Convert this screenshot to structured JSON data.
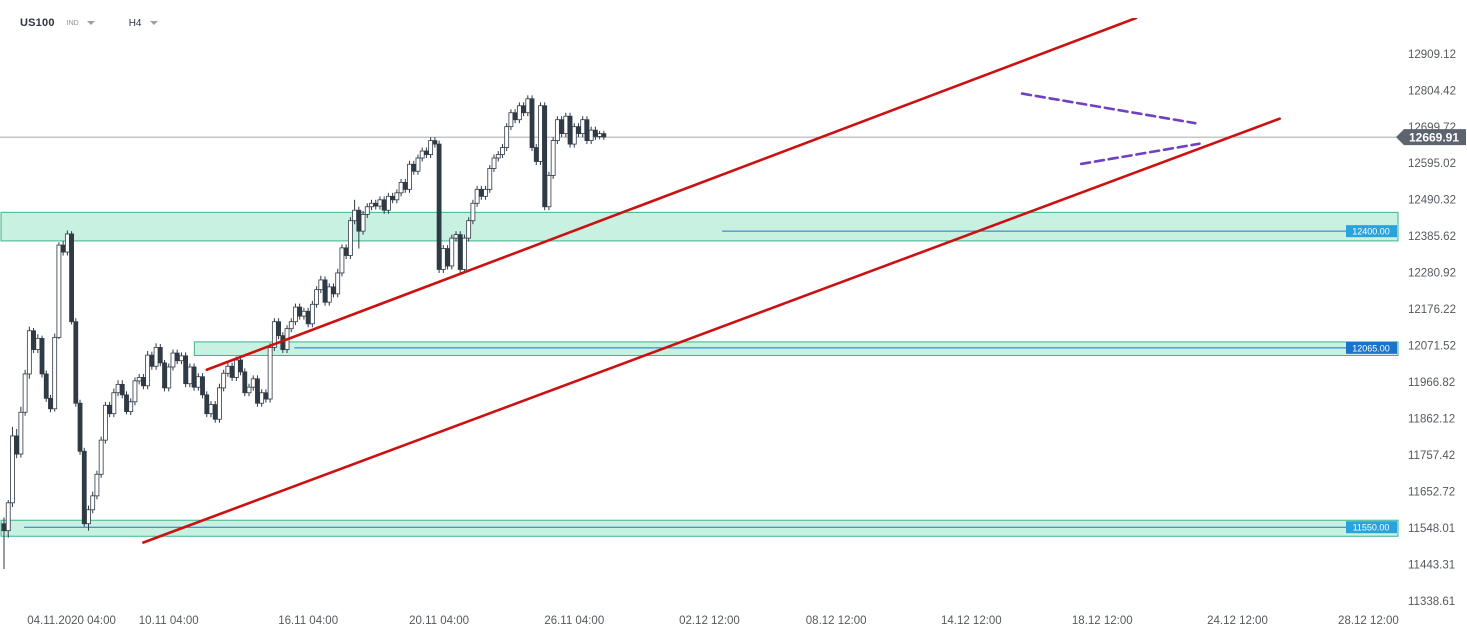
{
  "header": {
    "symbol": "US100",
    "symbol_type": "IND",
    "timeframe": "H4"
  },
  "colors": {
    "bull_candle": "#ffffff",
    "bear_candle": "#2f3a45",
    "wick": "#2f3a45",
    "channel": "#cc1111",
    "triangle": "#7040c0",
    "zone_fill": "#c9f1e2",
    "zone_stroke": "#3ab58a",
    "level_line": "#1a78c2",
    "level_badge_light": "#29a3dd",
    "level_badge_dark": "#1a74c9",
    "current_price_badge": "#5d6470",
    "axis_text": "#55595f"
  },
  "chart_data": {
    "type": "candlestick",
    "y_axis": {
      "ticks": [
        12909.12,
        12804.42,
        12699.72,
        12595.02,
        12490.32,
        12385.62,
        12280.92,
        12176.22,
        12071.52,
        11966.82,
        11862.12,
        11757.42,
        11652.72,
        11548.01,
        11443.31,
        11338.61
      ],
      "tick_labels": [
        "12909.12",
        "12804.42",
        "12699.72",
        "12595.02",
        "12490.32",
        "12385.62",
        "12280.92",
        "12176.22",
        "12071.52",
        "11966.82",
        "11862.12",
        "11757.42",
        "11652.72",
        "11548.01",
        "11443.31",
        "11338.61"
      ],
      "range": [
        11318,
        13012
      ]
    },
    "x_axis": {
      "range": [
        0,
        330
      ],
      "ticks": [
        {
          "x": 16,
          "label": "04.11.2020  04:00"
        },
        {
          "x": 39,
          "label": "10.11  04:00"
        },
        {
          "x": 72,
          "label": "16.11  04:00"
        },
        {
          "x": 103,
          "label": "20.11  04:00"
        },
        {
          "x": 135,
          "label": "26.11  04:00"
        },
        {
          "x": 167,
          "label": "02.12  12:00"
        },
        {
          "x": 197,
          "label": "08.12  12:00"
        },
        {
          "x": 229,
          "label": "14.12  12:00"
        },
        {
          "x": 260,
          "label": "18.12  12:00"
        },
        {
          "x": 292,
          "label": "24.12  12:00"
        },
        {
          "x": 323,
          "label": "28.12  12:00"
        }
      ]
    },
    "current_price": {
      "value": 12669.91,
      "label": "12669.91"
    },
    "levels": [
      {
        "value": 12400.0,
        "label": "12400.00",
        "x_start": 170,
        "zone": [
          12372,
          12454
        ]
      },
      {
        "value": 12065.0,
        "label": "12065.00",
        "x_start": 64,
        "zone": [
          12043,
          12082
        ]
      },
      {
        "value": 11550.0,
        "label": "11550.00",
        "x_start": 0,
        "zone": [
          11524,
          11570
        ]
      }
    ],
    "channel_lines": [
      {
        "x1": 48,
        "y1": 12002,
        "x2": 268,
        "y2": 13012
      },
      {
        "x1": 33,
        "y1": 11506,
        "x2": 302,
        "y2": 12723
      }
    ],
    "triangle_lines": [
      {
        "x1": 241,
        "y1": 12795,
        "x2": 282,
        "y2": 12710
      },
      {
        "x1": 255,
        "y1": 12593,
        "x2": 283,
        "y2": 12651
      }
    ],
    "candles": [
      [
        0,
        11560,
        11540,
        11578,
        11430
      ],
      [
        1,
        11540,
        11620,
        11628,
        11520
      ],
      [
        2,
        11620,
        11812,
        11838,
        11608
      ],
      [
        3,
        11812,
        11760,
        11832,
        11748
      ],
      [
        4,
        11760,
        11880,
        11896,
        11750
      ],
      [
        5,
        11880,
        11990,
        12002,
        11870
      ],
      [
        6,
        11990,
        12114,
        12126,
        11976
      ],
      [
        7,
        12114,
        12060,
        12122,
        12050
      ],
      [
        8,
        12060,
        12092,
        12104,
        12050
      ],
      [
        9,
        12092,
        11990,
        12100,
        11980
      ],
      [
        10,
        11990,
        11920,
        12000,
        11910
      ],
      [
        11,
        11920,
        11890,
        11930,
        11880
      ],
      [
        12,
        11890,
        12095,
        12106,
        11882
      ],
      [
        13,
        12095,
        12360,
        12368,
        12090
      ],
      [
        14,
        12360,
        12340,
        12372,
        12330
      ],
      [
        15,
        12340,
        12392,
        12402,
        12330
      ],
      [
        16,
        12392,
        12140,
        12400,
        12132
      ],
      [
        17,
        12140,
        11906,
        12150,
        11896
      ],
      [
        18,
        11906,
        11768,
        11916,
        11758
      ],
      [
        19,
        11768,
        11560,
        11778,
        11552
      ],
      [
        20,
        11560,
        11600,
        11612,
        11540
      ],
      [
        21,
        11600,
        11640,
        11652,
        11590
      ],
      [
        22,
        11640,
        11702,
        11712,
        11630
      ],
      [
        23,
        11702,
        11800,
        11810,
        11692
      ],
      [
        24,
        11800,
        11900,
        11910,
        11790
      ],
      [
        25,
        11900,
        11876,
        11910,
        11866
      ],
      [
        26,
        11876,
        11936,
        11948,
        11866
      ],
      [
        27,
        11936,
        11960,
        11972,
        11926
      ],
      [
        28,
        11960,
        11930,
        11972,
        11920
      ],
      [
        29,
        11930,
        11882,
        11940,
        11874
      ],
      [
        30,
        11882,
        11910,
        11920,
        11872
      ],
      [
        31,
        11910,
        11970,
        11980,
        11900
      ],
      [
        32,
        11970,
        11980,
        11990,
        11960
      ],
      [
        33,
        11980,
        11956,
        11990,
        11946
      ],
      [
        34,
        11956,
        12044,
        12056,
        11946
      ],
      [
        35,
        12044,
        12012,
        12054,
        12002
      ],
      [
        36,
        12012,
        12066,
        12078,
        12002
      ],
      [
        37,
        12066,
        12022,
        12076,
        12012
      ],
      [
        38,
        12022,
        11950,
        12030,
        11940
      ],
      [
        39,
        11950,
        12010,
        12020,
        11940
      ],
      [
        40,
        12010,
        12050,
        12060,
        12000
      ],
      [
        41,
        12050,
        12028,
        12060,
        12018
      ],
      [
        42,
        12028,
        12042,
        12052,
        12018
      ],
      [
        43,
        12042,
        11962,
        12052,
        11952
      ],
      [
        44,
        11962,
        12010,
        12020,
        11952
      ],
      [
        45,
        12010,
        11952,
        12020,
        11942
      ],
      [
        46,
        11952,
        11982,
        11992,
        11942
      ],
      [
        47,
        11982,
        11930,
        11992,
        11920
      ],
      [
        48,
        11930,
        11876,
        11940,
        11866
      ],
      [
        49,
        11876,
        11902,
        11912,
        11866
      ],
      [
        50,
        11902,
        11860,
        11912,
        11850
      ],
      [
        51,
        11860,
        11950,
        11962,
        11850
      ],
      [
        52,
        11950,
        11992,
        12002,
        11940
      ],
      [
        53,
        11992,
        12012,
        12022,
        11982
      ],
      [
        54,
        12012,
        11980,
        12022,
        11970
      ],
      [
        55,
        11980,
        12030,
        12040,
        11970
      ],
      [
        56,
        12030,
        11996,
        12040,
        11986
      ],
      [
        57,
        11996,
        11936,
        12006,
        11926
      ],
      [
        58,
        11936,
        11952,
        11962,
        11926
      ],
      [
        59,
        11952,
        11976,
        11986,
        11942
      ],
      [
        60,
        11976,
        11906,
        11986,
        11896
      ],
      [
        61,
        11906,
        11936,
        11946,
        11896
      ],
      [
        62,
        11936,
        11918,
        11946,
        11908
      ],
      [
        63,
        11918,
        12066,
        12078,
        11908
      ],
      [
        64,
        12066,
        12140,
        12150,
        12056
      ],
      [
        65,
        12140,
        12100,
        12150,
        12090
      ],
      [
        66,
        12100,
        12060,
        12110,
        12050
      ],
      [
        67,
        12060,
        12120,
        12130,
        12050
      ],
      [
        68,
        12120,
        12140,
        12150,
        12110
      ],
      [
        69,
        12140,
        12182,
        12192,
        12130
      ],
      [
        70,
        12182,
        12156,
        12192,
        12146
      ],
      [
        71,
        12156,
        12170,
        12180,
        12146
      ],
      [
        72,
        12170,
        12134,
        12180,
        12124
      ],
      [
        73,
        12134,
        12190,
        12200,
        12124
      ],
      [
        74,
        12190,
        12232,
        12242,
        12180
      ],
      [
        75,
        12232,
        12260,
        12272,
        12222
      ],
      [
        76,
        12260,
        12196,
        12270,
        12186
      ],
      [
        77,
        12196,
        12240,
        12250,
        12186
      ],
      [
        78,
        12240,
        12220,
        12250,
        12210
      ],
      [
        79,
        12220,
        12280,
        12292,
        12210
      ],
      [
        80,
        12280,
        12352,
        12362,
        12270
      ],
      [
        81,
        12352,
        12330,
        12362,
        12320
      ],
      [
        82,
        12330,
        12430,
        12440,
        12320
      ],
      [
        83,
        12430,
        12460,
        12490,
        12420
      ],
      [
        84,
        12460,
        12400,
        12470,
        12350
      ],
      [
        85,
        12400,
        12448,
        12458,
        12390
      ],
      [
        86,
        12448,
        12470,
        12480,
        12438
      ],
      [
        87,
        12470,
        12480,
        12490,
        12460
      ],
      [
        88,
        12480,
        12472,
        12490,
        12462
      ],
      [
        89,
        12472,
        12490,
        12500,
        12462
      ],
      [
        90,
        12490,
        12460,
        12500,
        12450
      ],
      [
        91,
        12460,
        12500,
        12510,
        12450
      ],
      [
        92,
        12500,
        12490,
        12510,
        12480
      ],
      [
        93,
        12490,
        12510,
        12520,
        12480
      ],
      [
        94,
        12510,
        12540,
        12550,
        12500
      ],
      [
        95,
        12540,
        12520,
        12550,
        12510
      ],
      [
        96,
        12520,
        12592,
        12602,
        12510
      ],
      [
        97,
        12592,
        12572,
        12602,
        12562
      ],
      [
        98,
        12572,
        12610,
        12620,
        12562
      ],
      [
        99,
        12610,
        12630,
        12640,
        12600
      ],
      [
        100,
        12630,
        12620,
        12640,
        12610
      ],
      [
        101,
        12620,
        12660,
        12670,
        12610
      ],
      [
        102,
        12660,
        12650,
        12670,
        12640
      ],
      [
        103,
        12650,
        12290,
        12660,
        12280
      ],
      [
        104,
        12290,
        12350,
        12360,
        12280
      ],
      [
        105,
        12350,
        12300,
        12360,
        12290
      ],
      [
        106,
        12300,
        12380,
        12390,
        12290
      ],
      [
        107,
        12380,
        12390,
        12400,
        12370
      ],
      [
        108,
        12390,
        12290,
        12400,
        12280
      ],
      [
        109,
        12290,
        12380,
        12390,
        12280
      ],
      [
        110,
        12380,
        12430,
        12440,
        12370
      ],
      [
        111,
        12430,
        12480,
        12490,
        12420
      ],
      [
        112,
        12480,
        12520,
        12530,
        12470
      ],
      [
        113,
        12520,
        12500,
        12530,
        12490
      ],
      [
        114,
        12500,
        12520,
        12530,
        12490
      ],
      [
        115,
        12520,
        12580,
        12590,
        12510
      ],
      [
        116,
        12580,
        12610,
        12620,
        12570
      ],
      [
        117,
        12610,
        12620,
        12630,
        12600
      ],
      [
        118,
        12620,
        12640,
        12650,
        12610
      ],
      [
        119,
        12640,
        12700,
        12710,
        12630
      ],
      [
        120,
        12700,
        12740,
        12750,
        12690
      ],
      [
        121,
        12740,
        12720,
        12750,
        12710
      ],
      [
        122,
        12720,
        12760,
        12770,
        12710
      ],
      [
        123,
        12760,
        12740,
        12770,
        12730
      ],
      [
        124,
        12740,
        12780,
        12790,
        12730
      ],
      [
        125,
        12780,
        12640,
        12790,
        12630
      ],
      [
        126,
        12640,
        12600,
        12650,
        12590
      ],
      [
        127,
        12600,
        12760,
        12770,
        12590
      ],
      [
        128,
        12760,
        12470,
        12770,
        12460
      ],
      [
        129,
        12470,
        12560,
        12570,
        12460
      ],
      [
        130,
        12560,
        12660,
        12670,
        12550
      ],
      [
        131,
        12660,
        12720,
        12730,
        12650
      ],
      [
        132,
        12720,
        12680,
        12730,
        12670
      ],
      [
        133,
        12680,
        12730,
        12740,
        12670
      ],
      [
        134,
        12730,
        12650,
        12740,
        12640
      ],
      [
        135,
        12650,
        12700,
        12710,
        12640
      ],
      [
        136,
        12700,
        12680,
        12710,
        12670
      ],
      [
        137,
        12680,
        12720,
        12730,
        12670
      ],
      [
        138,
        12720,
        12660,
        12730,
        12650
      ],
      [
        139,
        12660,
        12690,
        12700,
        12650
      ],
      [
        140,
        12690,
        12672,
        12700,
        12662
      ],
      [
        141,
        12672,
        12680,
        12688,
        12664
      ],
      [
        142,
        12680,
        12670,
        12688,
        12662
      ]
    ]
  }
}
